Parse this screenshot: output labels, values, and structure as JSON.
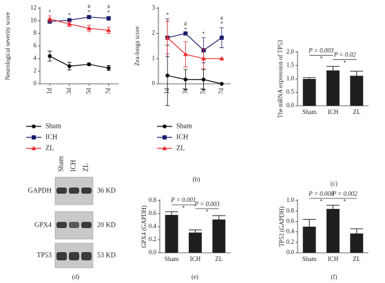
{
  "chart_data": [
    {
      "type": "line",
      "panel": "(a)",
      "y_label": "Neurological severity score",
      "categories": [
        "1d",
        "3d",
        "5d",
        "7d"
      ],
      "ylim": [
        0,
        12
      ],
      "yticks": [
        0,
        2,
        4,
        6,
        8,
        10,
        12
      ],
      "series": [
        {
          "name": "Sham",
          "color": "#000000",
          "marker": "circle",
          "values": [
            4.4,
            2.8,
            3.1,
            2.5
          ],
          "errors": [
            0.8,
            0.6,
            0.2,
            0.4
          ]
        },
        {
          "name": "ICH",
          "color": "#1b1b6b",
          "marker": "square",
          "values": [
            9.9,
            10.1,
            10.6,
            10.4
          ],
          "errors": [
            0.3,
            0.2,
            0.2,
            0.3
          ]
        },
        {
          "name": "ZL",
          "color": "#e8262a",
          "marker": "triangle",
          "values": [
            10.3,
            9.5,
            8.8,
            8.5
          ],
          "errors": [
            0.5,
            0.4,
            0.5,
            0.5
          ]
        }
      ],
      "annotations": [
        [
          "*"
        ],
        [
          "*"
        ],
        [
          "#",
          "*"
        ],
        [
          "#",
          "*"
        ]
      ]
    },
    {
      "type": "line",
      "panel": "(b)",
      "y_label": "Zea-longa score",
      "categories": [
        "1d",
        "3d",
        "5d",
        "7d"
      ],
      "ylim": [
        0,
        3
      ],
      "yticks": [
        0,
        1,
        2,
        3
      ],
      "series": [
        {
          "name": "Sham",
          "color": "#000000",
          "marker": "circle",
          "values": [
            0.33,
            0.17,
            0.17,
            0.0
          ],
          "errors": [
            1.2,
            0.4,
            0.4,
            0.0
          ]
        },
        {
          "name": "ICH",
          "color": "#1b1b6b",
          "marker": "square",
          "values": [
            1.83,
            2.0,
            1.33,
            1.83
          ],
          "errors": [
            0.75,
            0.0,
            0.5,
            0.4
          ]
        },
        {
          "name": "ZL",
          "color": "#e8262a",
          "marker": "triangle",
          "values": [
            1.83,
            1.17,
            1.0,
            1.0
          ],
          "errors": [
            0.65,
            0.5,
            0.4,
            0.0
          ]
        }
      ],
      "annotations": [
        [
          "*"
        ],
        [
          "#",
          "*"
        ],
        [
          "*"
        ],
        [
          "#",
          "*"
        ]
      ]
    },
    {
      "type": "bar",
      "panel": "(c)",
      "y_label": "The mRNA expression of TP53",
      "color": "#1f1f1f",
      "categories": [
        "Sham",
        "ICH",
        "ZL"
      ],
      "values": [
        1.0,
        1.32,
        1.12
      ],
      "errors": [
        0.05,
        0.15,
        0.17
      ],
      "ylim": [
        0,
        2
      ],
      "yticks": [
        {
          "value": 0,
          "label": "0.0"
        },
        {
          "value": 0.5,
          "label": "0.5"
        },
        {
          "value": 1,
          "label": "1.0"
        },
        {
          "value": 1.5,
          "label": "1.5"
        },
        {
          "value": 2,
          "label": "2.0"
        }
      ],
      "comparisons": [
        {
          "groups": [
            0,
            1
          ],
          "label": "P = 0.003",
          "mark": "*"
        },
        {
          "groups": [
            1,
            2
          ],
          "label": "P = 0.02",
          "mark": "*"
        }
      ]
    },
    {
      "type": "bar",
      "panel": "(e)",
      "y_label": "GPX4 (GAPDH)",
      "color": "#1f1f1f",
      "categories": [
        "Sham",
        "ICH",
        "ZL"
      ],
      "values": [
        0.58,
        0.31,
        0.51
      ],
      "errors": [
        0.05,
        0.04,
        0.06
      ],
      "ylim": [
        0,
        0.8
      ],
      "yticks": [
        {
          "value": 0,
          "label": "0.0"
        },
        0.2,
        0.4,
        0.6,
        0.8
      ],
      "comparisons": [
        {
          "groups": [
            0,
            1
          ],
          "label": "P = 0.001",
          "mark": "*"
        },
        {
          "groups": [
            1,
            2
          ],
          "label": "P = 0.003",
          "mark": "*"
        }
      ]
    },
    {
      "type": "bar",
      "panel": "(f)",
      "y_label": "TP53 (GAPDH)",
      "color": "#1f1f1f",
      "categories": [
        "Sham",
        "ICH",
        "ZL"
      ],
      "values": [
        0.5,
        0.84,
        0.37
      ],
      "errors": [
        0.14,
        0.07,
        0.09
      ],
      "ylim": [
        0,
        1
      ],
      "yticks": [
        {
          "value": 0,
          "label": "0.0"
        },
        0.2,
        0.4,
        0.6,
        0.8,
        {
          "value": 1,
          "label": "1.0"
        }
      ],
      "comparisons": [
        {
          "groups": [
            0,
            1
          ],
          "label": "P = 0.008",
          "mark": "*"
        },
        {
          "groups": [
            1,
            2
          ],
          "label": "P = 0.002",
          "mark": "*"
        }
      ]
    }
  ],
  "blot": {
    "panel": "(d)",
    "lanes": [
      "Sham",
      "ICH",
      "ZL"
    ],
    "bands": [
      {
        "name": "GAPDH",
        "size": "36 KD"
      },
      {
        "name": "GPX4",
        "size": "20 KD"
      },
      {
        "name": "TP53",
        "size": "53 KD"
      }
    ]
  }
}
